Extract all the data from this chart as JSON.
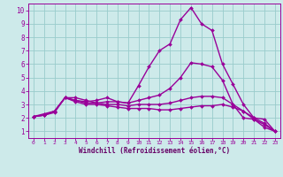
{
  "background_color": "#cdeaea",
  "line_color": "#990099",
  "grid_color": "#99cccc",
  "xlabel": "Windchill (Refroidissement éolien,°C)",
  "xlabel_color": "#660066",
  "xlim": [
    -0.5,
    23.5
  ],
  "ylim": [
    0.5,
    10.5
  ],
  "xticks": [
    0,
    1,
    2,
    3,
    4,
    5,
    6,
    7,
    8,
    9,
    10,
    11,
    12,
    13,
    14,
    15,
    16,
    17,
    18,
    19,
    20,
    21,
    22,
    23
  ],
  "yticks": [
    1,
    2,
    3,
    4,
    5,
    6,
    7,
    8,
    9,
    10
  ],
  "line_big_x": [
    0,
    1,
    2,
    3,
    4,
    5,
    6,
    7,
    8,
    9,
    10,
    11,
    12,
    13,
    14,
    15,
    16,
    17,
    18,
    19,
    20,
    21,
    22,
    23
  ],
  "line_big_y": [
    2.1,
    2.3,
    2.5,
    3.5,
    3.5,
    3.3,
    3.1,
    3.2,
    3.2,
    3.1,
    4.4,
    5.8,
    7.0,
    7.5,
    9.3,
    10.2,
    9.0,
    8.5,
    6.0,
    4.5,
    3.0,
    2.0,
    1.9,
    1.0
  ],
  "line_mid_x": [
    0,
    1,
    2,
    3,
    4,
    5,
    6,
    7,
    8,
    9,
    10,
    11,
    12,
    13,
    14,
    15,
    16,
    17,
    18,
    19,
    20,
    21,
    22,
    23
  ],
  "line_mid_y": [
    2.1,
    2.2,
    2.5,
    3.5,
    3.3,
    3.2,
    3.3,
    3.5,
    3.2,
    3.1,
    3.3,
    3.5,
    3.7,
    4.2,
    5.0,
    6.1,
    6.0,
    5.8,
    4.8,
    3.0,
    2.0,
    1.9,
    1.5,
    1.0
  ],
  "line_low_x": [
    0,
    1,
    2,
    3,
    4,
    5,
    6,
    7,
    8,
    9,
    10,
    11,
    12,
    13,
    14,
    15,
    16,
    17,
    18,
    19,
    20,
    21,
    22,
    23
  ],
  "line_low_y": [
    2.1,
    2.2,
    2.5,
    3.5,
    3.3,
    3.1,
    3.1,
    3.0,
    3.0,
    2.9,
    3.0,
    3.0,
    3.0,
    3.1,
    3.3,
    3.5,
    3.6,
    3.6,
    3.5,
    3.0,
    2.5,
    2.0,
    1.6,
    1.0
  ],
  "line_flat_x": [
    0,
    1,
    2,
    3,
    4,
    5,
    6,
    7,
    8,
    9,
    10,
    11,
    12,
    13,
    14,
    15,
    16,
    17,
    18,
    19,
    20,
    21,
    22,
    23
  ],
  "line_flat_y": [
    2.1,
    2.2,
    2.4,
    3.5,
    3.2,
    3.0,
    3.0,
    2.9,
    2.8,
    2.7,
    2.7,
    2.7,
    2.6,
    2.6,
    2.7,
    2.8,
    2.9,
    2.9,
    3.0,
    2.8,
    2.5,
    1.9,
    1.3,
    1.0
  ],
  "marker": "D",
  "marker_size": 2.0,
  "line_width": 1.0
}
